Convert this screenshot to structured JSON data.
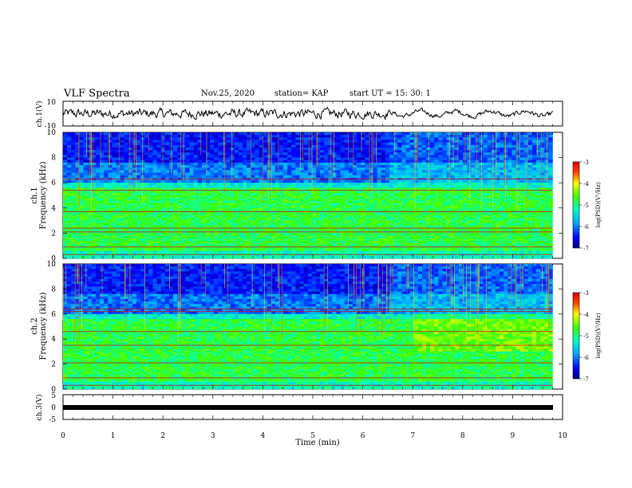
{
  "header": {
    "title": "VLF Spectra",
    "date": "Nov.25, 2020",
    "station": "station= KAP",
    "start": "start  UT =   15: 30: 1"
  },
  "chart_data": [
    {
      "type": "line",
      "title": "",
      "ylabel": "ch.1(V)",
      "ylim": [
        -10,
        10
      ],
      "yticks": [
        "10",
        "-10"
      ],
      "xlim": [
        0,
        10
      ],
      "note": "noisy waveform, amplitude decreasing after ~6.5 min"
    },
    {
      "type": "heatmap",
      "ylabel": "ch.1\nFrequency (kHz)",
      "ylabel_top": "ch.1",
      "ylabel_bottom": "Frequency (kHz)",
      "ylim": [
        0,
        10
      ],
      "yticks": [
        "0",
        "2",
        "4",
        "6",
        "8",
        "10"
      ],
      "xlim": [
        0,
        10
      ],
      "data_end_min": 9.8,
      "colorbar": {
        "label": "log(PSD)(V²/Hz)",
        "range": [
          -7,
          -3
        ],
        "ticks": [
          "-3",
          "-4",
          "-5",
          "-6",
          "-7"
        ]
      },
      "horizontal_lines_khz": [
        0.3,
        0.9,
        2.1,
        2.4,
        3.7,
        5.4,
        6.3
      ]
    },
    {
      "type": "heatmap",
      "ylabel": "ch.2\nFrequency (kHz)",
      "ylabel_top": "ch.2",
      "ylabel_bottom": "Frequency (kHz)",
      "ylim": [
        0,
        10
      ],
      "yticks": [
        "0",
        "2",
        "4",
        "6",
        "8",
        "10"
      ],
      "xlim": [
        0,
        10
      ],
      "data_end_min": 9.8,
      "colorbar": {
        "label": "log(PSD)(V²/Hz)",
        "range": [
          -7,
          -3
        ],
        "ticks": [
          "-3",
          "-4",
          "-5",
          "-6",
          "-7"
        ]
      },
      "horizontal_lines_khz": [
        0.3,
        0.9,
        2.1,
        3.5,
        4.6,
        6.2,
        6.4
      ]
    },
    {
      "type": "line",
      "ylabel": "ch.3(V)",
      "ylim": [
        -5,
        5
      ],
      "yticks": [
        "5",
        "0",
        "-5"
      ],
      "xlim": [
        0,
        10
      ],
      "xlabel": "Time (min)",
      "xticks": [
        "0",
        "1",
        "2",
        "3",
        "4",
        "5",
        "6",
        "7",
        "8",
        "9",
        "10"
      ],
      "note": "flat band near -1 V"
    }
  ]
}
